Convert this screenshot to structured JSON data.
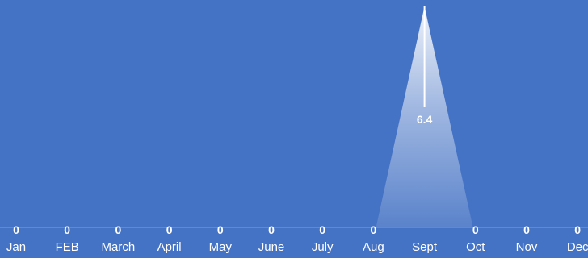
{
  "chart_data": {
    "type": "area",
    "style": "triangle-peaks",
    "categories": [
      "Jan",
      "FEB",
      "March",
      "April",
      "May",
      "June",
      "July",
      "Aug",
      "Sept",
      "Oct",
      "Nov",
      "Dec"
    ],
    "values": [
      0,
      0,
      0,
      0,
      0,
      0,
      0,
      0,
      6.4,
      0,
      0,
      0
    ],
    "data_labels": [
      "0",
      "0",
      "0",
      "0",
      "0",
      "0",
      "0",
      "0",
      "6.4",
      "0",
      "0",
      "0"
    ],
    "title": "",
    "xlabel": "",
    "ylabel": "",
    "ylim": [
      0,
      6.4
    ],
    "grid": false,
    "legend": "none",
    "colors": {
      "background": "#4472C4",
      "peak": "#FFFFFF",
      "text": "#FFFFFF",
      "baseline": "#7F9FD6"
    }
  }
}
